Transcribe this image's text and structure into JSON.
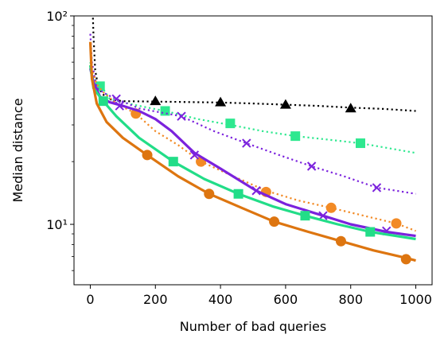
{
  "chart_data": {
    "type": "line",
    "x_label": "Number of bad queries",
    "y_label": "Median distance",
    "log_y": true,
    "xlim": [
      -50,
      1050
    ],
    "ylim": [
      5.13,
      100
    ],
    "xticks": [
      0,
      200,
      400,
      600,
      800,
      1000
    ],
    "yticks": [
      {
        "value": 10,
        "label": "10¹"
      },
      {
        "value": 100,
        "label": "10²"
      }
    ],
    "yminorticks": [
      6,
      7,
      8,
      9,
      20,
      30,
      40,
      50,
      60,
      70,
      80,
      90
    ],
    "series": [
      {
        "color": "#000000",
        "linestyle": "dotted",
        "marker": "triangle",
        "x": [
          5,
          10,
          15,
          25,
          50,
          100,
          200,
          300,
          400,
          500,
          600,
          700,
          800,
          900,
          1000
        ],
        "values": [
          140,
          80,
          55,
          45,
          40,
          39,
          38.8,
          38.6,
          38.4,
          38,
          37.5,
          37,
          36.3,
          35.8,
          35
        ],
        "marker_x": [
          200,
          400,
          600,
          800
        ],
        "marker_values": [
          39,
          38.5,
          37.5,
          36
        ]
      },
      {
        "color": "#2ee88f",
        "linestyle": "dotted",
        "marker": "square",
        "x": [
          0,
          10,
          30,
          60,
          100,
          150,
          230,
          330,
          430,
          530,
          630,
          730,
          830,
          930,
          1000
        ],
        "values": [
          60,
          50,
          47,
          40,
          38.5,
          37,
          35,
          32,
          30,
          28,
          26.5,
          25.5,
          24.5,
          23,
          22
        ],
        "marker_x": [
          30,
          230,
          430,
          630,
          830
        ],
        "marker_values": [
          46,
          35,
          30.5,
          26.5,
          24.5
        ]
      },
      {
        "color": "#7b22dd",
        "linestyle": "dotted",
        "marker": "x",
        "x": [
          0,
          5,
          20,
          50,
          80,
          150,
          280,
          380,
          480,
          580,
          680,
          780,
          880,
          1000
        ],
        "values": [
          82,
          60,
          45,
          42,
          40,
          36,
          33,
          28,
          24.5,
          21.5,
          19,
          17,
          15,
          14
        ],
        "marker_x": [
          80,
          280,
          480,
          680,
          880
        ],
        "marker_values": [
          40,
          33,
          24.5,
          19,
          15
        ]
      },
      {
        "color": "#f28a25",
        "linestyle": "dotted",
        "marker": "circle",
        "x": [
          0,
          5,
          20,
          40,
          80,
          140,
          200,
          270,
          340,
          440,
          540,
          640,
          740,
          840,
          940,
          1000
        ],
        "values": [
          73,
          55,
          47,
          43,
          38,
          34,
          28,
          24,
          20,
          17,
          14.5,
          13,
          12,
          11,
          10.1,
          9.3
        ],
        "marker_x": [
          140,
          340,
          540,
          740,
          940
        ],
        "marker_values": [
          34,
          20,
          14.3,
          12,
          10.1
        ]
      },
      {
        "color": "#7b22dd",
        "linestyle": "solid",
        "marker": "x",
        "x": [
          0,
          10,
          30,
          60,
          100,
          150,
          200,
          250,
          320,
          400,
          510,
          600,
          715,
          800,
          910,
          1000
        ],
        "values": [
          56,
          48,
          41,
          38.5,
          37,
          35,
          32,
          28,
          22,
          18.5,
          14.5,
          12.5,
          11,
          10,
          9.2,
          8.8
        ],
        "marker_x": [
          90,
          320,
          510,
          715,
          910
        ],
        "marker_values": [
          37,
          21.5,
          14.5,
          11,
          9.3
        ]
      },
      {
        "color": "#22dd88",
        "linestyle": "solid",
        "marker": "square",
        "x": [
          0,
          10,
          40,
          80,
          150,
          255,
          350,
          455,
          560,
          660,
          760,
          860,
          1000
        ],
        "values": [
          58,
          45,
          39,
          33,
          26,
          20,
          16.5,
          14,
          12.2,
          11,
          10,
          9.2,
          8.5
        ],
        "marker_x": [
          40,
          255,
          455,
          660,
          860
        ],
        "marker_values": [
          39,
          20,
          14,
          11,
          9.2
        ]
      },
      {
        "color": "#dd7510",
        "linestyle": "solid",
        "marker": "circle",
        "x": [
          0,
          5,
          20,
          50,
          100,
          175,
          270,
          365,
          465,
          565,
          670,
          770,
          870,
          970,
          1000
        ],
        "values": [
          75,
          50,
          38,
          31,
          26,
          21.5,
          17,
          14,
          12,
          10.3,
          9.2,
          8.3,
          7.5,
          6.9,
          6.7
        ],
        "marker_x": [
          175,
          365,
          565,
          770,
          970
        ],
        "marker_values": [
          21.5,
          14,
          10.3,
          8.3,
          6.8
        ]
      }
    ]
  }
}
